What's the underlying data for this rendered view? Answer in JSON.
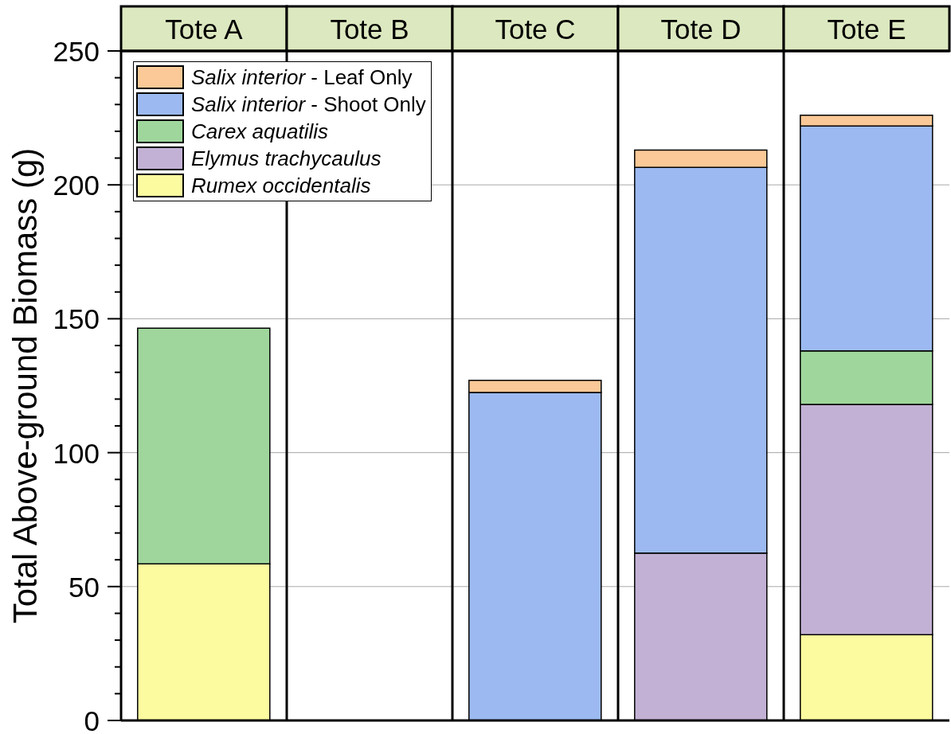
{
  "chart_data": {
    "type": "bar",
    "ylabel": "Total Above-ground Biomass (g)",
    "categories": [
      "Tote A",
      "Tote B",
      "Tote C",
      "Tote D",
      "Tote E"
    ],
    "stacked": true,
    "series": [
      {
        "name": "Rumex occidentalis",
        "color": "#fdfb9f",
        "values": [
          58.5,
          null,
          null,
          null,
          32
        ]
      },
      {
        "name": "Elymus trachycaulus",
        "color": "#c3b1d5",
        "values": [
          null,
          null,
          null,
          62.5,
          86
        ]
      },
      {
        "name": "Carex aquatilis",
        "color": "#9fd69c",
        "values": [
          88,
          null,
          null,
          null,
          20
        ]
      },
      {
        "name": "Salix interior - Shoot Only",
        "color": "#9cbaf1",
        "values": [
          null,
          null,
          122.5,
          144,
          84
        ]
      },
      {
        "name": "Salix interior - Leaf Only",
        "color": "#fbc997",
        "values": [
          null,
          null,
          4.5,
          6.5,
          4
        ]
      }
    ],
    "ylim": [
      0,
      250
    ],
    "yticks": [
      0,
      {
        "value": 10,
        "label": null
      },
      {
        "value": 20,
        "label": null
      },
      {
        "value": 30,
        "label": null
      },
      {
        "value": 40,
        "label": null
      },
      50,
      {
        "value": 60,
        "label": null
      },
      {
        "value": 70,
        "label": null
      },
      {
        "value": 80,
        "label": null
      },
      {
        "value": 90,
        "label": null
      },
      100,
      {
        "value": 110,
        "label": null
      },
      {
        "value": 120,
        "label": null
      },
      {
        "value": 130,
        "label": null
      },
      {
        "value": 140,
        "label": null
      },
      150,
      {
        "value": 160,
        "label": null
      },
      {
        "value": 170,
        "label": null
      },
      {
        "value": 180,
        "label": null
      },
      {
        "value": 190,
        "label": null
      },
      200,
      {
        "value": 210,
        "label": null
      },
      {
        "value": 220,
        "label": null
      },
      {
        "value": 230,
        "label": null
      },
      {
        "value": 240,
        "label": null
      },
      250
    ],
    "grid": "y",
    "legend": "top left"
  }
}
